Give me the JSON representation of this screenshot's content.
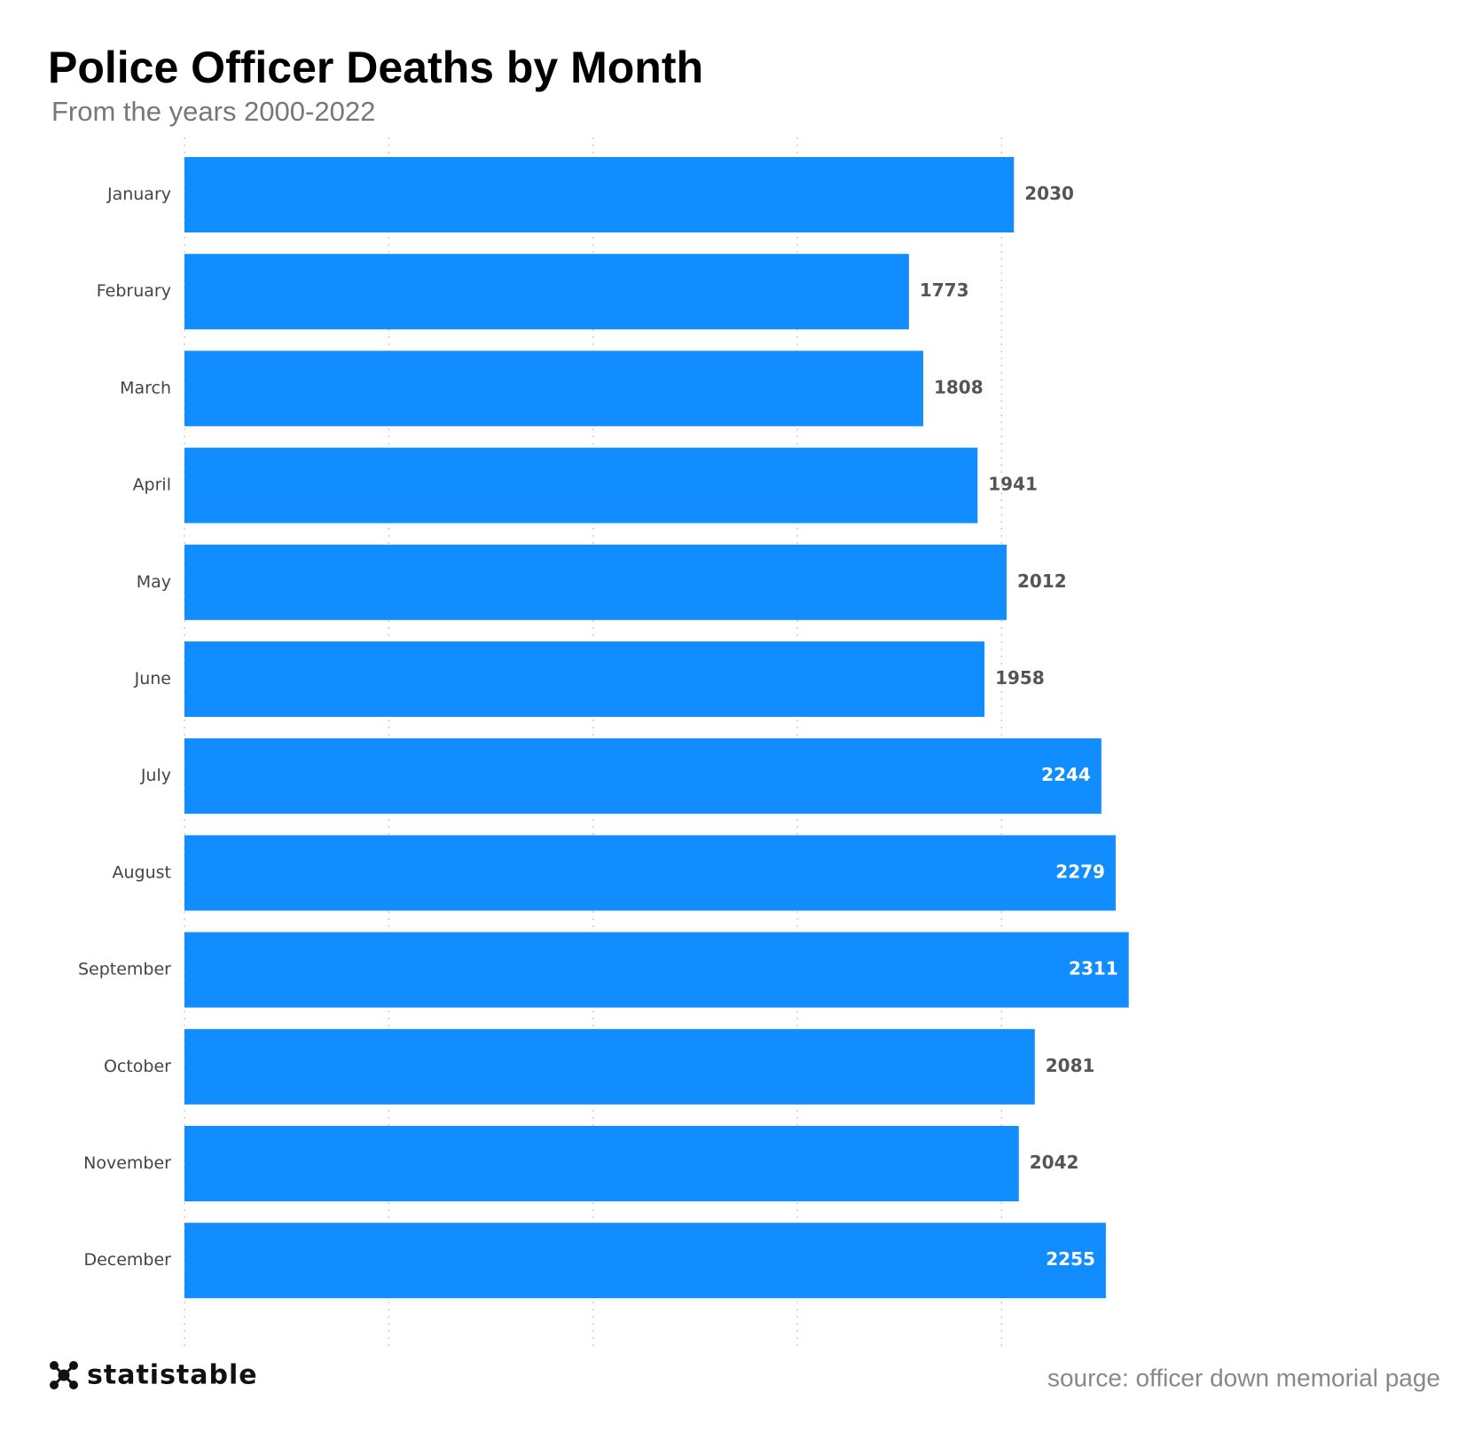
{
  "chart_data": {
    "type": "hbar",
    "title": "Police Officer Deaths by Month",
    "subtitle": "From the years 2000-2022",
    "categories": [
      "January",
      "February",
      "March",
      "April",
      "May",
      "June",
      "July",
      "August",
      "September",
      "October",
      "November",
      "December"
    ],
    "values": [
      2030,
      1773,
      1808,
      1941,
      2012,
      1958,
      2244,
      2279,
      2311,
      2081,
      2042,
      2255
    ],
    "color": "#118dff",
    "xlim": [
      0,
      2800
    ],
    "xticks": [
      0,
      500,
      1000,
      1500,
      2000
    ],
    "grid": true
  },
  "footer": {
    "brand": "statistable",
    "source": "source: officer down memorial page"
  }
}
